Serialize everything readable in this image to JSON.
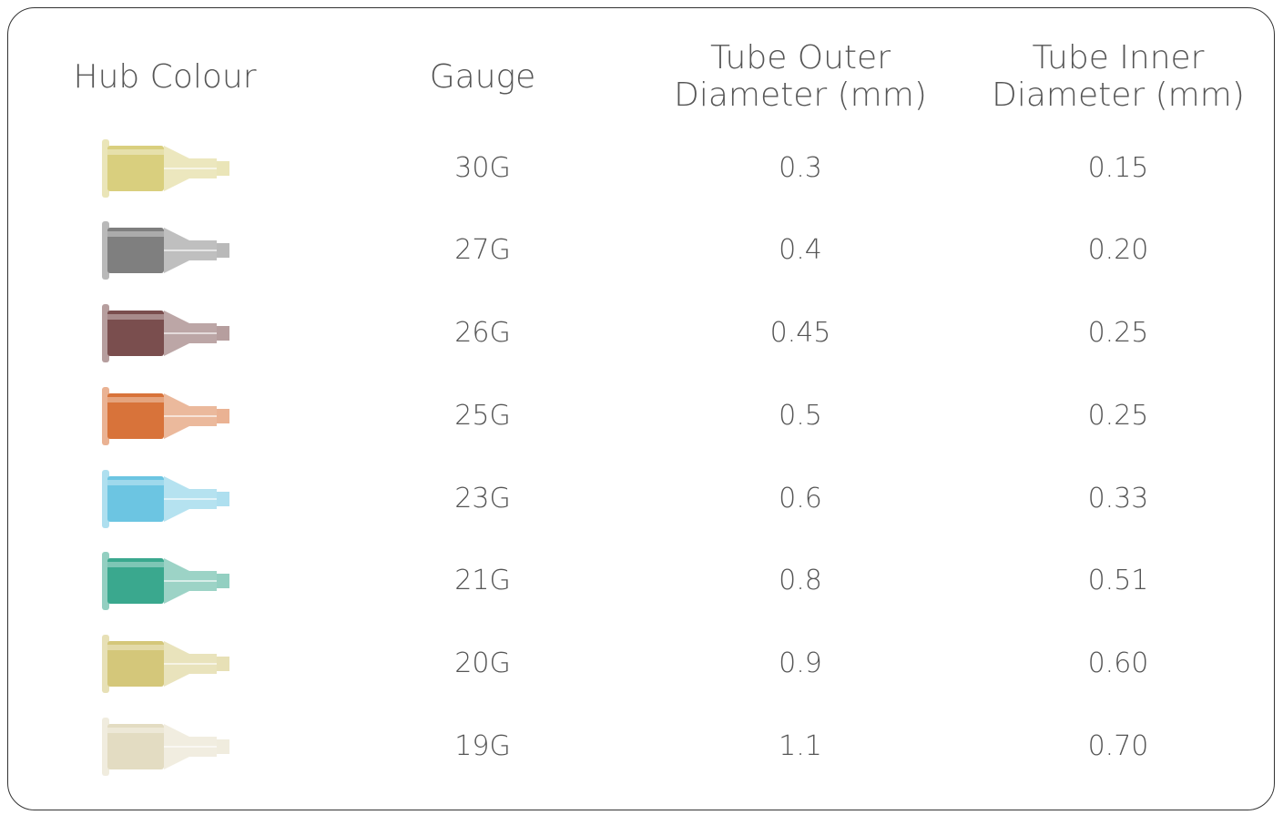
{
  "table": {
    "header": [
      [
        "Hub Colour"
      ],
      [
        "Gauge"
      ],
      [
        "Tube Outer",
        "Diameter (mm)"
      ],
      [
        "Tube Inner",
        "Diameter (mm)"
      ]
    ],
    "rows": [
      {
        "hub_color": "#d9cf7e",
        "gauge": "30G",
        "outer": "0.3",
        "inner": "0.15"
      },
      {
        "hub_color": "#7f7f7f",
        "gauge": "27G",
        "outer": "0.4",
        "inner": "0.20"
      },
      {
        "hub_color": "#7a4e4e",
        "gauge": "26G",
        "outer": "0.45",
        "inner": "0.25"
      },
      {
        "hub_color": "#d8733a",
        "gauge": "25G",
        "outer": "0.5",
        "inner": "0.25"
      },
      {
        "hub_color": "#6cc5e2",
        "gauge": "23G",
        "outer": "0.6",
        "inner": "0.33"
      },
      {
        "hub_color": "#3aa88e",
        "gauge": "21G",
        "outer": "0.8",
        "inner": "0.51"
      },
      {
        "hub_color": "#d4c77a",
        "gauge": "20G",
        "outer": "0.9",
        "inner": "0.60"
      },
      {
        "hub_color": "#e3dcc2",
        "gauge": "19G",
        "outer": "1.1",
        "inner": "0.70"
      }
    ]
  }
}
